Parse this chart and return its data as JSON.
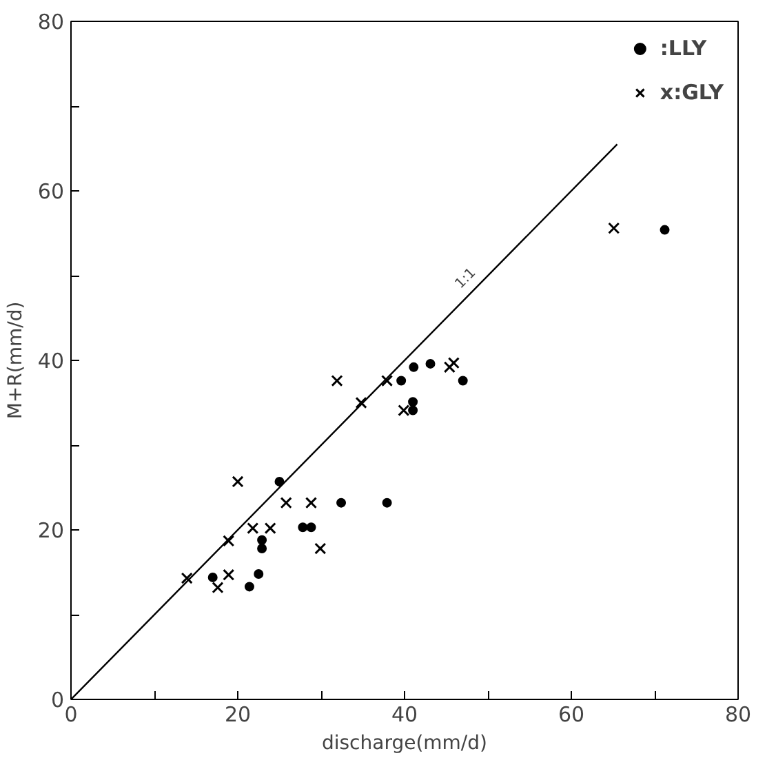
{
  "chart_data": {
    "type": "scatter",
    "xlabel": "discharge(mm/d)",
    "ylabel": "M+R(mm/d)",
    "xlim": [
      0,
      80
    ],
    "ylim": [
      0,
      80
    ],
    "xticks": [
      0,
      {
        "value": 10,
        "label": null
      },
      20,
      {
        "value": 30,
        "label": null
      },
      40,
      {
        "value": 50,
        "label": null
      },
      60,
      {
        "value": 70,
        "label": null
      },
      80
    ],
    "yticks": [
      0,
      {
        "value": 10,
        "label": null
      },
      20,
      {
        "value": 30,
        "label": null
      },
      40,
      {
        "value": 50,
        "label": null
      },
      60,
      {
        "value": 70,
        "label": null
      },
      80
    ],
    "grid": false,
    "legend": "top right",
    "series": [
      {
        "name": ":LLY",
        "color": "#000000",
        "marker": "circle",
        "x": [
          25.0,
          32.4,
          37.9,
          27.8,
          28.8,
          22.9,
          22.9,
          17.0,
          22.5,
          21.4,
          39.6,
          41.1,
          43.1,
          41.0,
          41.0,
          47.0,
          71.2
        ],
        "values": [
          25.7,
          23.2,
          23.2,
          20.3,
          20.3,
          18.8,
          17.8,
          14.4,
          14.8,
          13.3,
          37.6,
          39.2,
          39.6,
          35.1,
          34.1,
          37.6,
          55.4
        ]
      },
      {
        "name": "x:GLY",
        "color": "#000000",
        "marker": "cross",
        "x": [
          20.0,
          25.8,
          28.8,
          21.8,
          23.9,
          18.9,
          29.9,
          13.9,
          18.9,
          17.6,
          31.9,
          37.9,
          34.8,
          39.9,
          45.4,
          45.9,
          65.1
        ],
        "values": [
          25.7,
          23.2,
          23.2,
          20.2,
          20.2,
          18.7,
          17.8,
          14.3,
          14.7,
          13.2,
          37.6,
          37.6,
          35.0,
          34.1,
          39.2,
          39.7,
          55.6
        ]
      },
      {
        "type": "line",
        "color": "#000000",
        "line_style": "solid",
        "x": [
          0,
          65.5
        ],
        "values": [
          0,
          65.5
        ]
      }
    ],
    "annotations": [
      {
        "text": "1:1",
        "x": 48,
        "y": 49
      }
    ]
  }
}
